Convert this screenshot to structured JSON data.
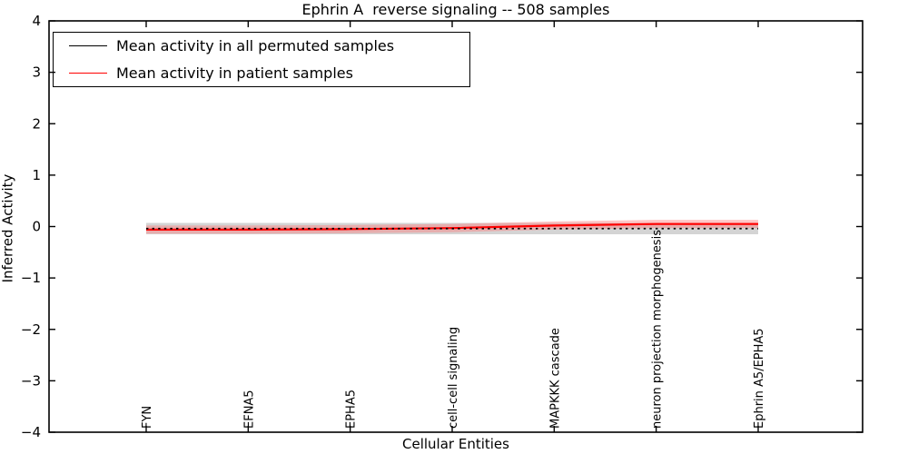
{
  "chart_data": {
    "type": "line",
    "title": "Ephrin A  reverse signaling -- 508 samples",
    "xlabel": "Cellular Entities",
    "ylabel": "Inferred Activity",
    "ylim": [
      -4,
      4
    ],
    "yticks": [
      4,
      3,
      2,
      1,
      0,
      -1,
      -2,
      -3,
      -4
    ],
    "grid": false,
    "legend_position": "upper left",
    "categories": [
      "FYN",
      "EFNA5",
      "EPHA5",
      "cell-cell signaling",
      "MAPKKK cascade",
      "neuron projection morphogenesis",
      "Ephrin A5/EPHA5"
    ],
    "series": [
      {
        "name": "Mean activity in all permuted samples",
        "color": "#000000",
        "linestyle": "dotted",
        "values": [
          -0.04,
          -0.04,
          -0.04,
          -0.04,
          -0.04,
          -0.04,
          -0.04
        ],
        "band_halfwidth": 0.11,
        "band_color": "#999999"
      },
      {
        "name": "Mean activity in patient samples",
        "color": "#ff0000",
        "linestyle": "solid",
        "values": [
          -0.06,
          -0.06,
          -0.05,
          -0.03,
          0.02,
          0.05,
          0.05
        ],
        "band_halfwidth": 0.08,
        "band_color": "#ff7777"
      }
    ]
  }
}
